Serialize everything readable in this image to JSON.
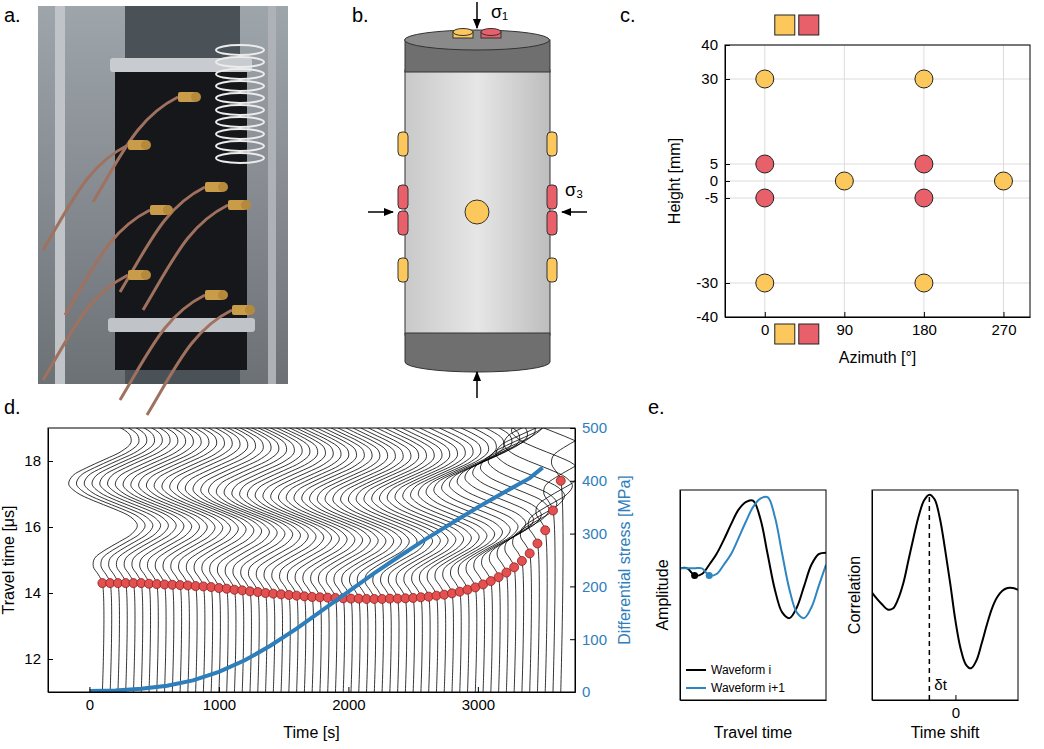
{
  "panel_labels": [
    "a.",
    "b.",
    "c.",
    "d.",
    "e."
  ],
  "diagram": {
    "stress_labels": [
      "σ₁",
      "σ₃"
    ]
  },
  "chart_data": [
    {
      "type": "scatter",
      "xlabel": "Azimuth [°]",
      "ylabel": "Height [mm]",
      "xlim": [
        -45,
        300
      ],
      "ylim": [
        -40,
        40
      ],
      "xticks": [
        0,
        90,
        180,
        270
      ],
      "yticks": [
        -40,
        -30,
        -5,
        0,
        5,
        30,
        40
      ],
      "grid": true,
      "series": [
        {
          "color": "#fcc85c",
          "marker": "circle",
          "x": [
            0,
            180,
            0,
            180,
            90,
            270
          ],
          "values": [
            30,
            30,
            -30,
            -30,
            0,
            0
          ]
        },
        {
          "color": "#e8606a",
          "marker": "circle",
          "x": [
            0,
            180,
            0,
            180
          ],
          "values": [
            5,
            5,
            -5,
            -5
          ]
        }
      ]
    },
    {
      "type": "line",
      "xlabel": "Time [s]",
      "ylabel": "Travel time [μs]",
      "y2label": "Differential stress [MPa]",
      "xlim": [
        -320,
        3750
      ],
      "ylim": [
        11,
        19
      ],
      "y2lim": [
        0,
        500
      ],
      "xticks": [
        0,
        1000,
        2000,
        3000
      ],
      "yticks": [
        12,
        14,
        16,
        18
      ],
      "y2ticks": [
        0,
        100,
        200,
        300,
        400,
        500
      ],
      "series": [
        {
          "type": "scatter",
          "color": "#e4504f",
          "marker": "circle",
          "x": [
            100,
            160,
            220,
            280,
            340,
            400,
            460,
            520,
            580,
            640,
            700,
            760,
            820,
            880,
            940,
            1000,
            1060,
            1120,
            1180,
            1240,
            1300,
            1360,
            1420,
            1480,
            1540,
            1600,
            1660,
            1720,
            1780,
            1840,
            1900,
            1960,
            2020,
            2080,
            2140,
            2200,
            2260,
            2320,
            2380,
            2440,
            2500,
            2560,
            2620,
            2680,
            2740,
            2800,
            2860,
            2920,
            2980,
            3040,
            3100,
            3160,
            3220,
            3280,
            3340,
            3400,
            3460,
            3520,
            3580,
            3640
          ],
          "values": [
            14.3,
            14.3,
            14.3,
            14.3,
            14.3,
            14.3,
            14.28,
            14.27,
            14.26,
            14.25,
            14.24,
            14.23,
            14.21,
            14.2,
            14.18,
            14.15,
            14.13,
            14.1,
            14.08,
            14.05,
            14.03,
            14.0,
            13.98,
            13.96,
            13.94,
            13.92,
            13.9,
            13.88,
            13.87,
            13.86,
            13.85,
            13.84,
            13.83,
            13.83,
            13.82,
            13.82,
            13.82,
            13.83,
            13.83,
            13.84,
            13.85,
            13.87,
            13.89,
            13.92,
            13.95,
            13.99,
            14.04,
            14.1,
            14.17,
            14.26,
            14.36,
            14.48,
            14.62,
            14.78,
            14.97,
            15.2,
            15.5,
            15.9,
            16.5,
            17.4
          ]
        },
        {
          "type": "line",
          "axis": "y2",
          "color": "#2e7ebc",
          "x": [
            0,
            200,
            400,
            600,
            800,
            1000,
            1200,
            1400,
            1600,
            1800,
            2000,
            2200,
            2400,
            2600,
            2800,
            3000,
            3200,
            3400,
            3500
          ],
          "values": [
            2,
            3,
            6,
            12,
            22,
            38,
            60,
            88,
            120,
            155,
            190,
            225,
            258,
            290,
            320,
            350,
            378,
            405,
            425
          ]
        }
      ],
      "waveform": {
        "x": [
          0,
          0.25,
          0.5,
          0.75,
          1,
          1.25,
          1.5,
          1.75,
          2,
          2.25,
          2.5,
          2.75,
          3,
          3.25,
          3.5,
          3.75,
          4,
          4.25,
          4.5,
          4.75,
          5,
          5.25,
          5.5,
          5.75,
          6
        ],
        "values": [
          0,
          -30,
          -70,
          -60,
          20,
          130,
          230,
          270,
          220,
          90,
          -70,
          -200,
          -260,
          -230,
          -120,
          20,
          150,
          220,
          210,
          120,
          -10,
          -130,
          -190,
          -170,
          -80
        ]
      }
    },
    {
      "type": "line",
      "xlabel": "Travel time",
      "ylabel": "Amplitude",
      "tick_labels": false,
      "xlim": [
        0,
        10
      ],
      "ylim": [
        -1.85,
        1.1
      ],
      "legend": "lower left",
      "x": [
        0,
        0.5,
        1,
        1.5,
        2,
        2.5,
        3,
        3.5,
        4,
        4.5,
        5,
        5.5,
        6,
        6.5,
        7,
        7.5,
        8,
        8.5,
        9,
        9.5,
        10
      ],
      "series": [
        {
          "name": "Waveform i",
          "color": "#000000",
          "values": [
            0,
            0,
            -0.1,
            -0.08,
            0.05,
            0.2,
            0.4,
            0.62,
            0.82,
            0.93,
            0.95,
            0.7,
            0.2,
            -0.3,
            -0.62,
            -0.7,
            -0.55,
            -0.25,
            0.05,
            0.2,
            0.22
          ],
          "onset_x": 1,
          "onset_y": -0.1
        },
        {
          "name": "Waveform i+1",
          "color": "#2e86c1",
          "values": [
            0,
            0,
            0,
            0,
            -0.1,
            -0.08,
            0.05,
            0.2,
            0.42,
            0.65,
            0.86,
            0.98,
            1.0,
            0.72,
            0.2,
            -0.3,
            -0.62,
            -0.7,
            -0.55,
            -0.25,
            0.05
          ],
          "onset_x": 2,
          "onset_y": -0.1
        }
      ]
    },
    {
      "type": "line",
      "xlabel": "Time shift",
      "ylabel": "Correlation",
      "tick_labels": "x",
      "xlim": [
        -4,
        3
      ],
      "ylim": [
        -1.2,
        1.05
      ],
      "xticks": [
        0
      ],
      "x": [
        -4,
        -3.75,
        -3.5,
        -3.25,
        -3,
        -2.75,
        -2.5,
        -2.25,
        -2,
        -1.75,
        -1.5,
        -1.25,
        -1,
        -0.75,
        -0.5,
        -0.25,
        0,
        0.25,
        0.5,
        0.75,
        1,
        1.25,
        1.5,
        1.75,
        2,
        2.25,
        2.5,
        2.75,
        3
      ],
      "series": [
        {
          "color": "#000000",
          "values": [
            -0.05,
            -0.12,
            -0.18,
            -0.23,
            -0.22,
            -0.12,
            0.05,
            0.3,
            0.55,
            0.78,
            0.94,
            1.0,
            0.95,
            0.75,
            0.42,
            0.05,
            -0.35,
            -0.65,
            -0.82,
            -0.86,
            -0.78,
            -0.6,
            -0.4,
            -0.22,
            -0.1,
            -0.03,
            0,
            0,
            -0.02
          ]
        }
      ],
      "annotations": [
        {
          "x": -1.25,
          "text": "δt",
          "line_style": "dashed"
        }
      ]
    }
  ]
}
